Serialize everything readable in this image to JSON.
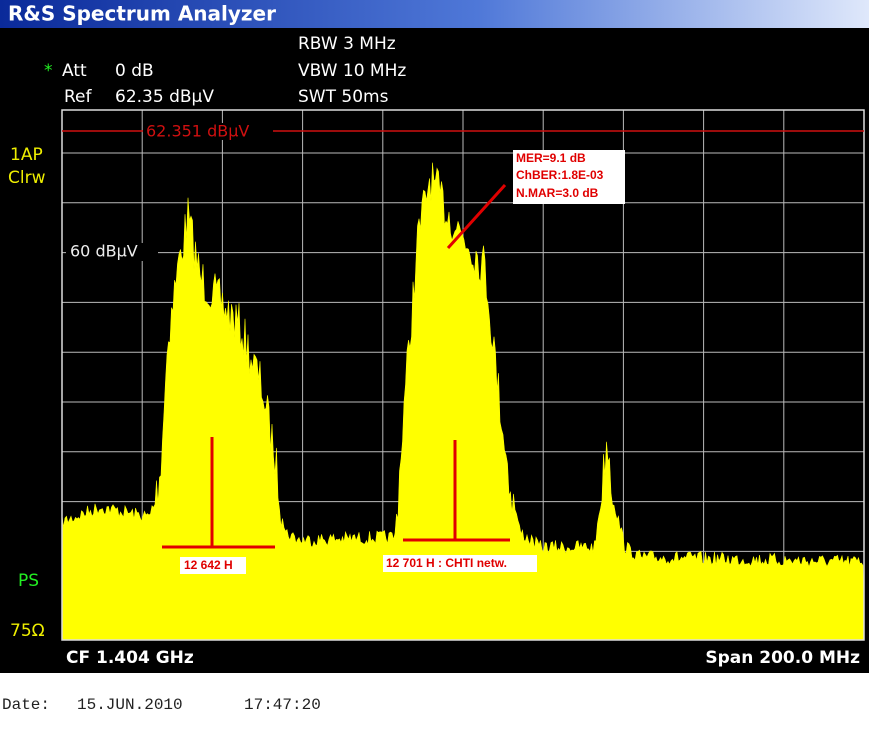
{
  "title": "R&S Spectrum Analyzer",
  "settings": {
    "rbw": "RBW 3 MHz",
    "vbw": "VBW 10 MHz",
    "swt": "SWT 50ms",
    "att_flag": "*",
    "att": "Att",
    "att_value": "0 dB",
    "ref": "Ref",
    "ref_value": "62.35 dBµV"
  },
  "side_labels": {
    "trace": "1AP",
    "mode": "Clrw",
    "ps": "PS",
    "impedance": "75Ω"
  },
  "plot": {
    "ref_line_label": "62.351 dBµV",
    "level_label": "60 dBµV"
  },
  "annotations": {
    "measurements": [
      "MER=9.1 dB",
      "ChBER:1.8E-03",
      "N.MAR=3.0 dB"
    ],
    "channel_1": "12 642 H",
    "channel_2": "12 701 H : CHTI netw."
  },
  "footer": {
    "center_freq": "CF 1.404 GHz",
    "span": "Span 200.0 MHz"
  },
  "date_line": {
    "label": "Date:",
    "date": "15.JUN.2010",
    "time": "17:47:20"
  }
}
